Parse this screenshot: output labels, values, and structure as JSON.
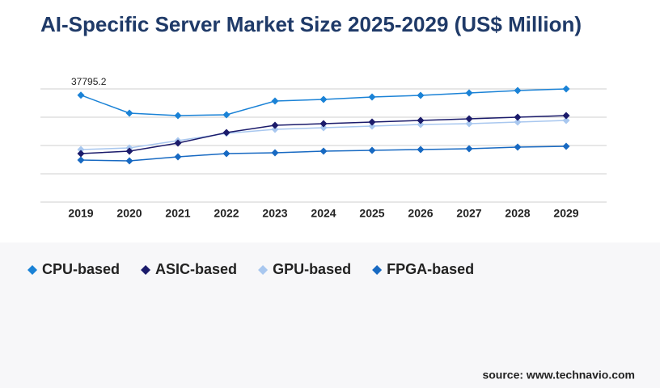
{
  "chart_data": {
    "type": "line",
    "title": "AI-Specific Server Market Size 2025-2029 (US$ Million)",
    "categories": [
      "2019",
      "2020",
      "2021",
      "2022",
      "2023",
      "2024",
      "2025",
      "2026",
      "2027",
      "2028",
      "2029"
    ],
    "series": [
      {
        "name": "CPU-based",
        "color": "#1a82d6",
        "values": [
          37795.2,
          31430,
          30570,
          30860,
          35710,
          36290,
          37140,
          37710,
          38570,
          39430,
          40000
        ]
      },
      {
        "name": "ASIC-based",
        "color": "#1b1b6b",
        "values": [
          17140,
          18000,
          20860,
          24570,
          27140,
          27710,
          28290,
          28860,
          29430,
          30000,
          30570
        ]
      },
      {
        "name": "GPU-based",
        "color": "#a8c7ef",
        "values": [
          18570,
          19140,
          21710,
          24290,
          25710,
          26290,
          26860,
          27430,
          27710,
          28290,
          28860
        ]
      },
      {
        "name": "FPGA-based",
        "color": "#1769c2",
        "values": [
          14860,
          14570,
          16000,
          17140,
          17430,
          18000,
          18290,
          18570,
          18860,
          19430,
          19710
        ]
      }
    ],
    "ylim": [
      0,
      40000
    ],
    "yticks": [
      0,
      10000,
      20000,
      30000,
      40000
    ],
    "grid": true,
    "source": "source: www.technavio.com"
  }
}
